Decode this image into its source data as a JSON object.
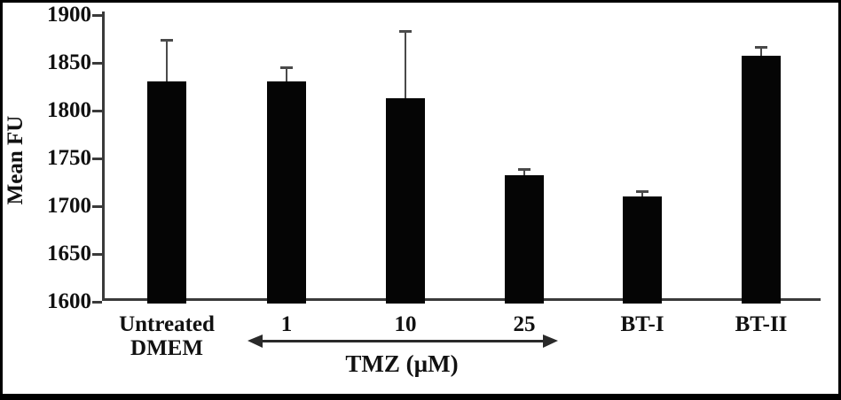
{
  "chart_data": {
    "type": "bar",
    "title": "",
    "xlabel": "",
    "ylabel": "Mean FU",
    "ylim": [
      1600,
      1900
    ],
    "yticks": [
      1900,
      1850,
      1800,
      1750,
      1700,
      1650,
      1600
    ],
    "categories": [
      "Untreated\nDMEM",
      "1",
      "10",
      "25",
      "BT-I",
      "BT-II"
    ],
    "values": [
      1831,
      1831,
      1813,
      1732,
      1710,
      1857
    ],
    "errors_plus": [
      43,
      14,
      70,
      7,
      6,
      10
    ],
    "grid": false,
    "legend": "none",
    "annotations": {
      "arrow_group": {
        "label": "TMZ (µM)",
        "covers": [
          "1",
          "10",
          "25"
        ]
      }
    }
  },
  "colors": {
    "bar": "#050505",
    "axis": "#3a3a3a",
    "error": "#4a4a4a",
    "text": "#111111",
    "frame_border": "#000000",
    "background": "#ffffff"
  }
}
